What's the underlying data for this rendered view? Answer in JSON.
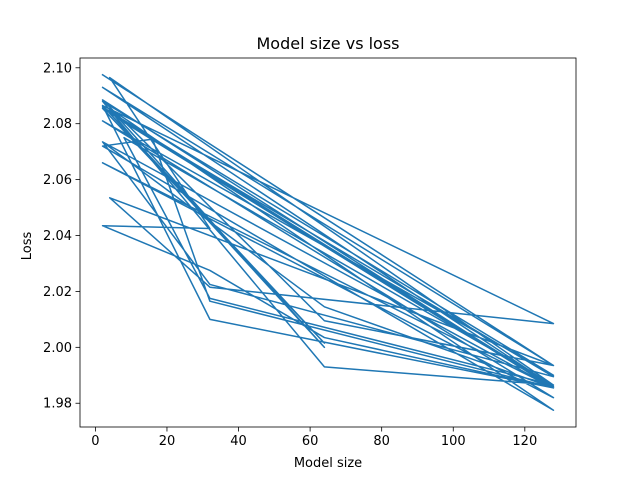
{
  "chart_data": {
    "type": "line",
    "title": "Model size vs loss",
    "xlabel": "Model size",
    "ylabel": "Loss",
    "xlim": [
      -4.3,
      134.3
    ],
    "ylim": [
      1.9715,
      2.1035
    ],
    "xticks": [
      0,
      20,
      40,
      60,
      80,
      100,
      120
    ],
    "yticks": [
      1.98,
      2.0,
      2.02,
      2.04,
      2.06,
      2.08,
      2.1
    ],
    "ytick_labels": [
      "1.98",
      "2.00",
      "2.02",
      "2.04",
      "2.06",
      "2.08",
      "2.10"
    ],
    "series": [
      {
        "name": "loss",
        "color": "#1f77b4",
        "x": [
          2,
          128,
          2,
          128,
          2,
          16,
          2,
          128,
          4,
          64,
          2,
          32,
          128,
          2,
          128,
          2,
          128,
          2,
          64,
          128,
          8,
          32,
          128,
          4,
          32,
          2,
          32,
          64,
          128,
          2,
          32,
          128,
          16,
          32,
          128,
          2,
          64,
          128,
          4,
          32,
          128,
          2,
          64,
          2,
          128,
          2,
          64,
          128,
          8,
          128
        ],
        "y": [
          2.0975,
          1.9935,
          2.093,
          1.986,
          2.086,
          2.0745,
          2.072,
          1.9775,
          2.0855,
          2.0,
          2.0865,
          2.01,
          1.9855,
          2.066,
          1.982,
          2.081,
          1.99,
          2.088,
          1.993,
          1.9865,
          2.075,
          2.0175,
          1.9865,
          2.0965,
          2.0425,
          2.0435,
          2.0275,
          2.0035,
          1.9855,
          2.0735,
          2.0225,
          1.9895,
          2.0745,
          2.0165,
          1.9855,
          2.0885,
          2.0095,
          1.9935,
          2.0535,
          2.0215,
          2.0085,
          2.0865,
          2.0015,
          2.0855,
          1.9855,
          2.0735,
          2.0145,
          1.9855,
          2.0805,
          1.9855
        ]
      }
    ]
  }
}
